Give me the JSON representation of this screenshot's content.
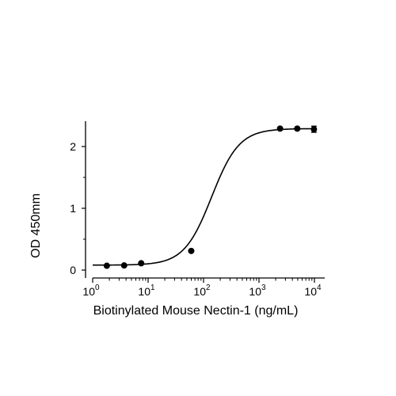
{
  "chart_data": {
    "type": "scatter",
    "title": "",
    "xlabel": "Biotinylated Mouse Nectin-1 (ng/mL)",
    "ylabel": "OD 450mm",
    "x_scale": "log",
    "xlim": [
      1,
      10000
    ],
    "ylim": [
      0,
      2.3
    ],
    "x_ticks": [
      1,
      10,
      100,
      1000,
      10000
    ],
    "x_tick_labels": [
      {
        "base": "10",
        "exp": "0"
      },
      {
        "base": "10",
        "exp": "1"
      },
      {
        "base": "10",
        "exp": "2"
      },
      {
        "base": "10",
        "exp": "3"
      },
      {
        "base": "10",
        "exp": "4"
      }
    ],
    "y_ticks": [
      0,
      1,
      2
    ],
    "y_tick_labels": [
      "0",
      "1",
      "2"
    ],
    "grid": false,
    "series": [
      {
        "points": [
          {
            "x": 1.8,
            "y": 0.07
          },
          {
            "x": 3.7,
            "y": 0.075
          },
          {
            "x": 7.5,
            "y": 0.11
          },
          {
            "x": 60,
            "y": 0.31
          },
          {
            "x": 2400,
            "y": 2.29
          },
          {
            "x": 4900,
            "y": 2.29
          },
          {
            "x": 9800,
            "y": 2.28
          }
        ],
        "error_bars": [
          {
            "x": 9800,
            "y": 2.28,
            "err": 0.05
          }
        ],
        "fit": {
          "model": "4PL",
          "bottom": 0.08,
          "top": 2.29,
          "ec50": 140,
          "hill": 1.75
        }
      }
    ]
  }
}
